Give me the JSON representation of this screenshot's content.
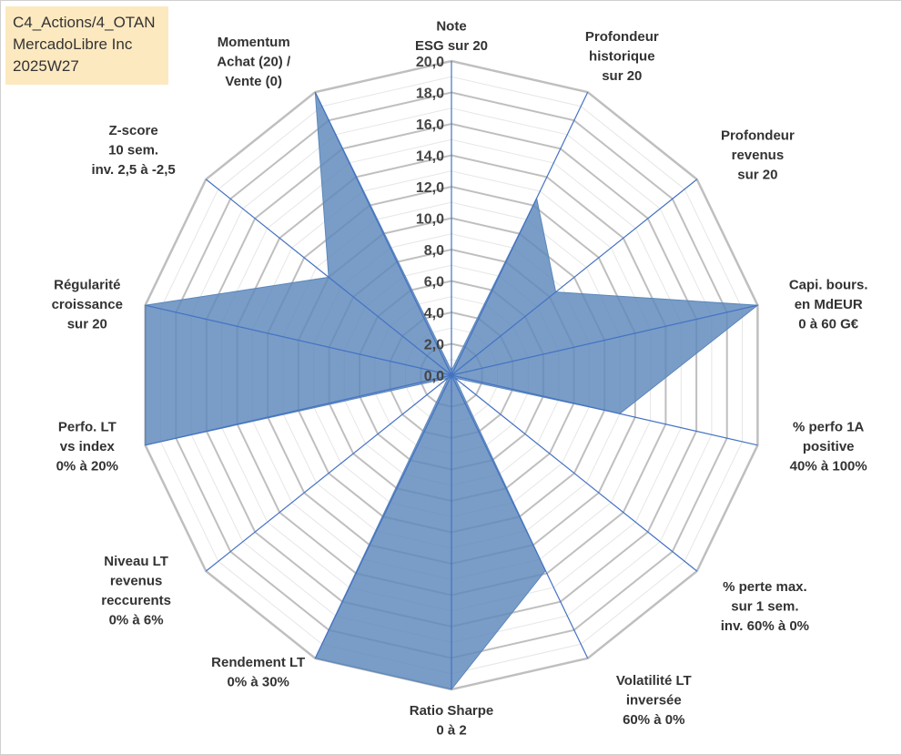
{
  "info": {
    "line1": "C4_Actions/4_OTAN",
    "line2": "MercadoLibre Inc",
    "line3": "2025W27"
  },
  "chart_data": {
    "type": "radar",
    "rmin": 0,
    "rmax": 20,
    "ticks": [
      "0,0",
      "2,0",
      "4,0",
      "6,0",
      "8,0",
      "10,0",
      "12,0",
      "14,0",
      "16,0",
      "18,0",
      "20,0"
    ],
    "axes": [
      {
        "label": [
          "Note",
          "ESG sur 20"
        ]
      },
      {
        "label": [
          "Profondeur",
          "historique",
          "sur 20"
        ]
      },
      {
        "label": [
          "Profondeur",
          "revenus",
          "sur 20"
        ]
      },
      {
        "label": [
          "Capi. bours.",
          "en MdEUR",
          "0 à 60 G€"
        ]
      },
      {
        "label": [
          "% perfo 1A",
          "positive",
          "40% à 100%"
        ]
      },
      {
        "label": [
          "% perte max.",
          "sur 1 sem.",
          "inv. 60% à 0%"
        ]
      },
      {
        "label": [
          "Volatilité LT",
          "inversée",
          "60% à 0%"
        ]
      },
      {
        "label": [
          "Ratio Sharpe",
          "0 à 2"
        ]
      },
      {
        "label": [
          "Rendement LT",
          "0% à 30%"
        ]
      },
      {
        "label": [
          "Niveau LT",
          "revenus",
          "reccurents",
          "0% à 6%"
        ]
      },
      {
        "label": [
          "Perfo. LT",
          "vs index",
          "0% à 20%"
        ]
      },
      {
        "label": [
          "Régularité",
          "croissance",
          "sur 20"
        ]
      },
      {
        "label": [
          "Z-score",
          "10 sem.",
          "inv. 2,5 à -2,5"
        ]
      },
      {
        "label": [
          "Momentum",
          "Achat (20) /",
          "Vente (0)"
        ]
      }
    ],
    "series": [
      {
        "values": [
          0.3,
          12.5,
          8.5,
          20.0,
          11.0,
          0.3,
          13.8,
          20.0,
          20.0,
          0.3,
          20.0,
          20.0,
          10.0,
          20.0
        ]
      }
    ],
    "colors": {
      "fill": "#5b87bb",
      "spoke": "#4472c4",
      "grid_major": "#bfbfbf",
      "grid_minor": "#e6e6e6"
    }
  }
}
